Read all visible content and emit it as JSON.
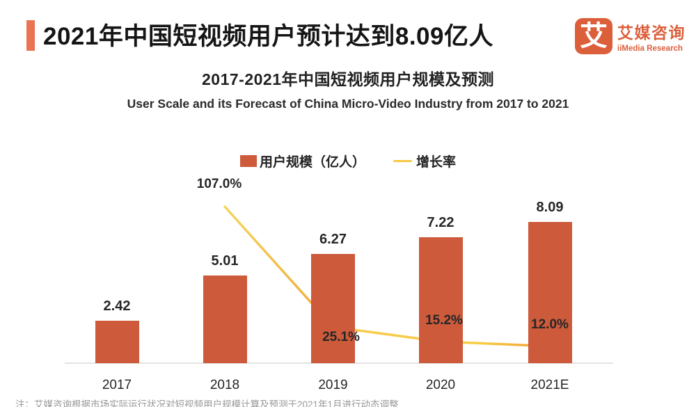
{
  "header": {
    "title": "2021年中国短视频用户预计达到8.09亿人"
  },
  "logo": {
    "mark": "艾",
    "name_cn": "艾媒咨询",
    "name_en": "iiMedia Research"
  },
  "chart": {
    "title": "2017-2021年中国短视频用户规模及预测",
    "subtitle": "User Scale and its Forecast of China Micro-Video Industry from 2017 to 2021",
    "legend": [
      {
        "type": "bar",
        "label": "用户规模（亿人）",
        "color": "#CC5A3B"
      },
      {
        "type": "line",
        "label": "增长率",
        "color": "#F6C844"
      }
    ]
  },
  "chart_data": {
    "type": "bar",
    "categories": [
      "2017",
      "2018",
      "2019",
      "2020",
      "2021E"
    ],
    "series": [
      {
        "name": "用户规模（亿人）",
        "type": "bar",
        "values": [
          2.42,
          5.01,
          6.27,
          7.22,
          8.09
        ],
        "labels": [
          "2.42",
          "5.01",
          "6.27",
          "7.22",
          "8.09"
        ],
        "color": "#CC5A3B"
      },
      {
        "name": "增长率",
        "type": "line",
        "values": [
          null,
          107.0,
          25.1,
          15.2,
          12.0
        ],
        "labels": [
          null,
          "107.0%",
          "25.1%",
          "15.2%",
          "12.0%"
        ],
        "color": "#F6C844"
      }
    ],
    "title": "2017-2021年中国短视频用户规模及预测",
    "subtitle": "User Scale and its Forecast of China Micro-Video Industry from 2017 to 2021",
    "xlabel": "",
    "ylabel": "",
    "grid": false,
    "legend_position": "top",
    "value_labels_shown": true
  },
  "note": "注：艾媒咨询根据市场实际运行状况对短视频用户规模计算及预测于2021年1月进行动态调整",
  "colors": {
    "accent": "#E87454",
    "bar": "#CC5A3B",
    "line": "#F6C844",
    "logo": "#DC5F3B",
    "axis": "#E3E3E3",
    "note": "#999999"
  }
}
